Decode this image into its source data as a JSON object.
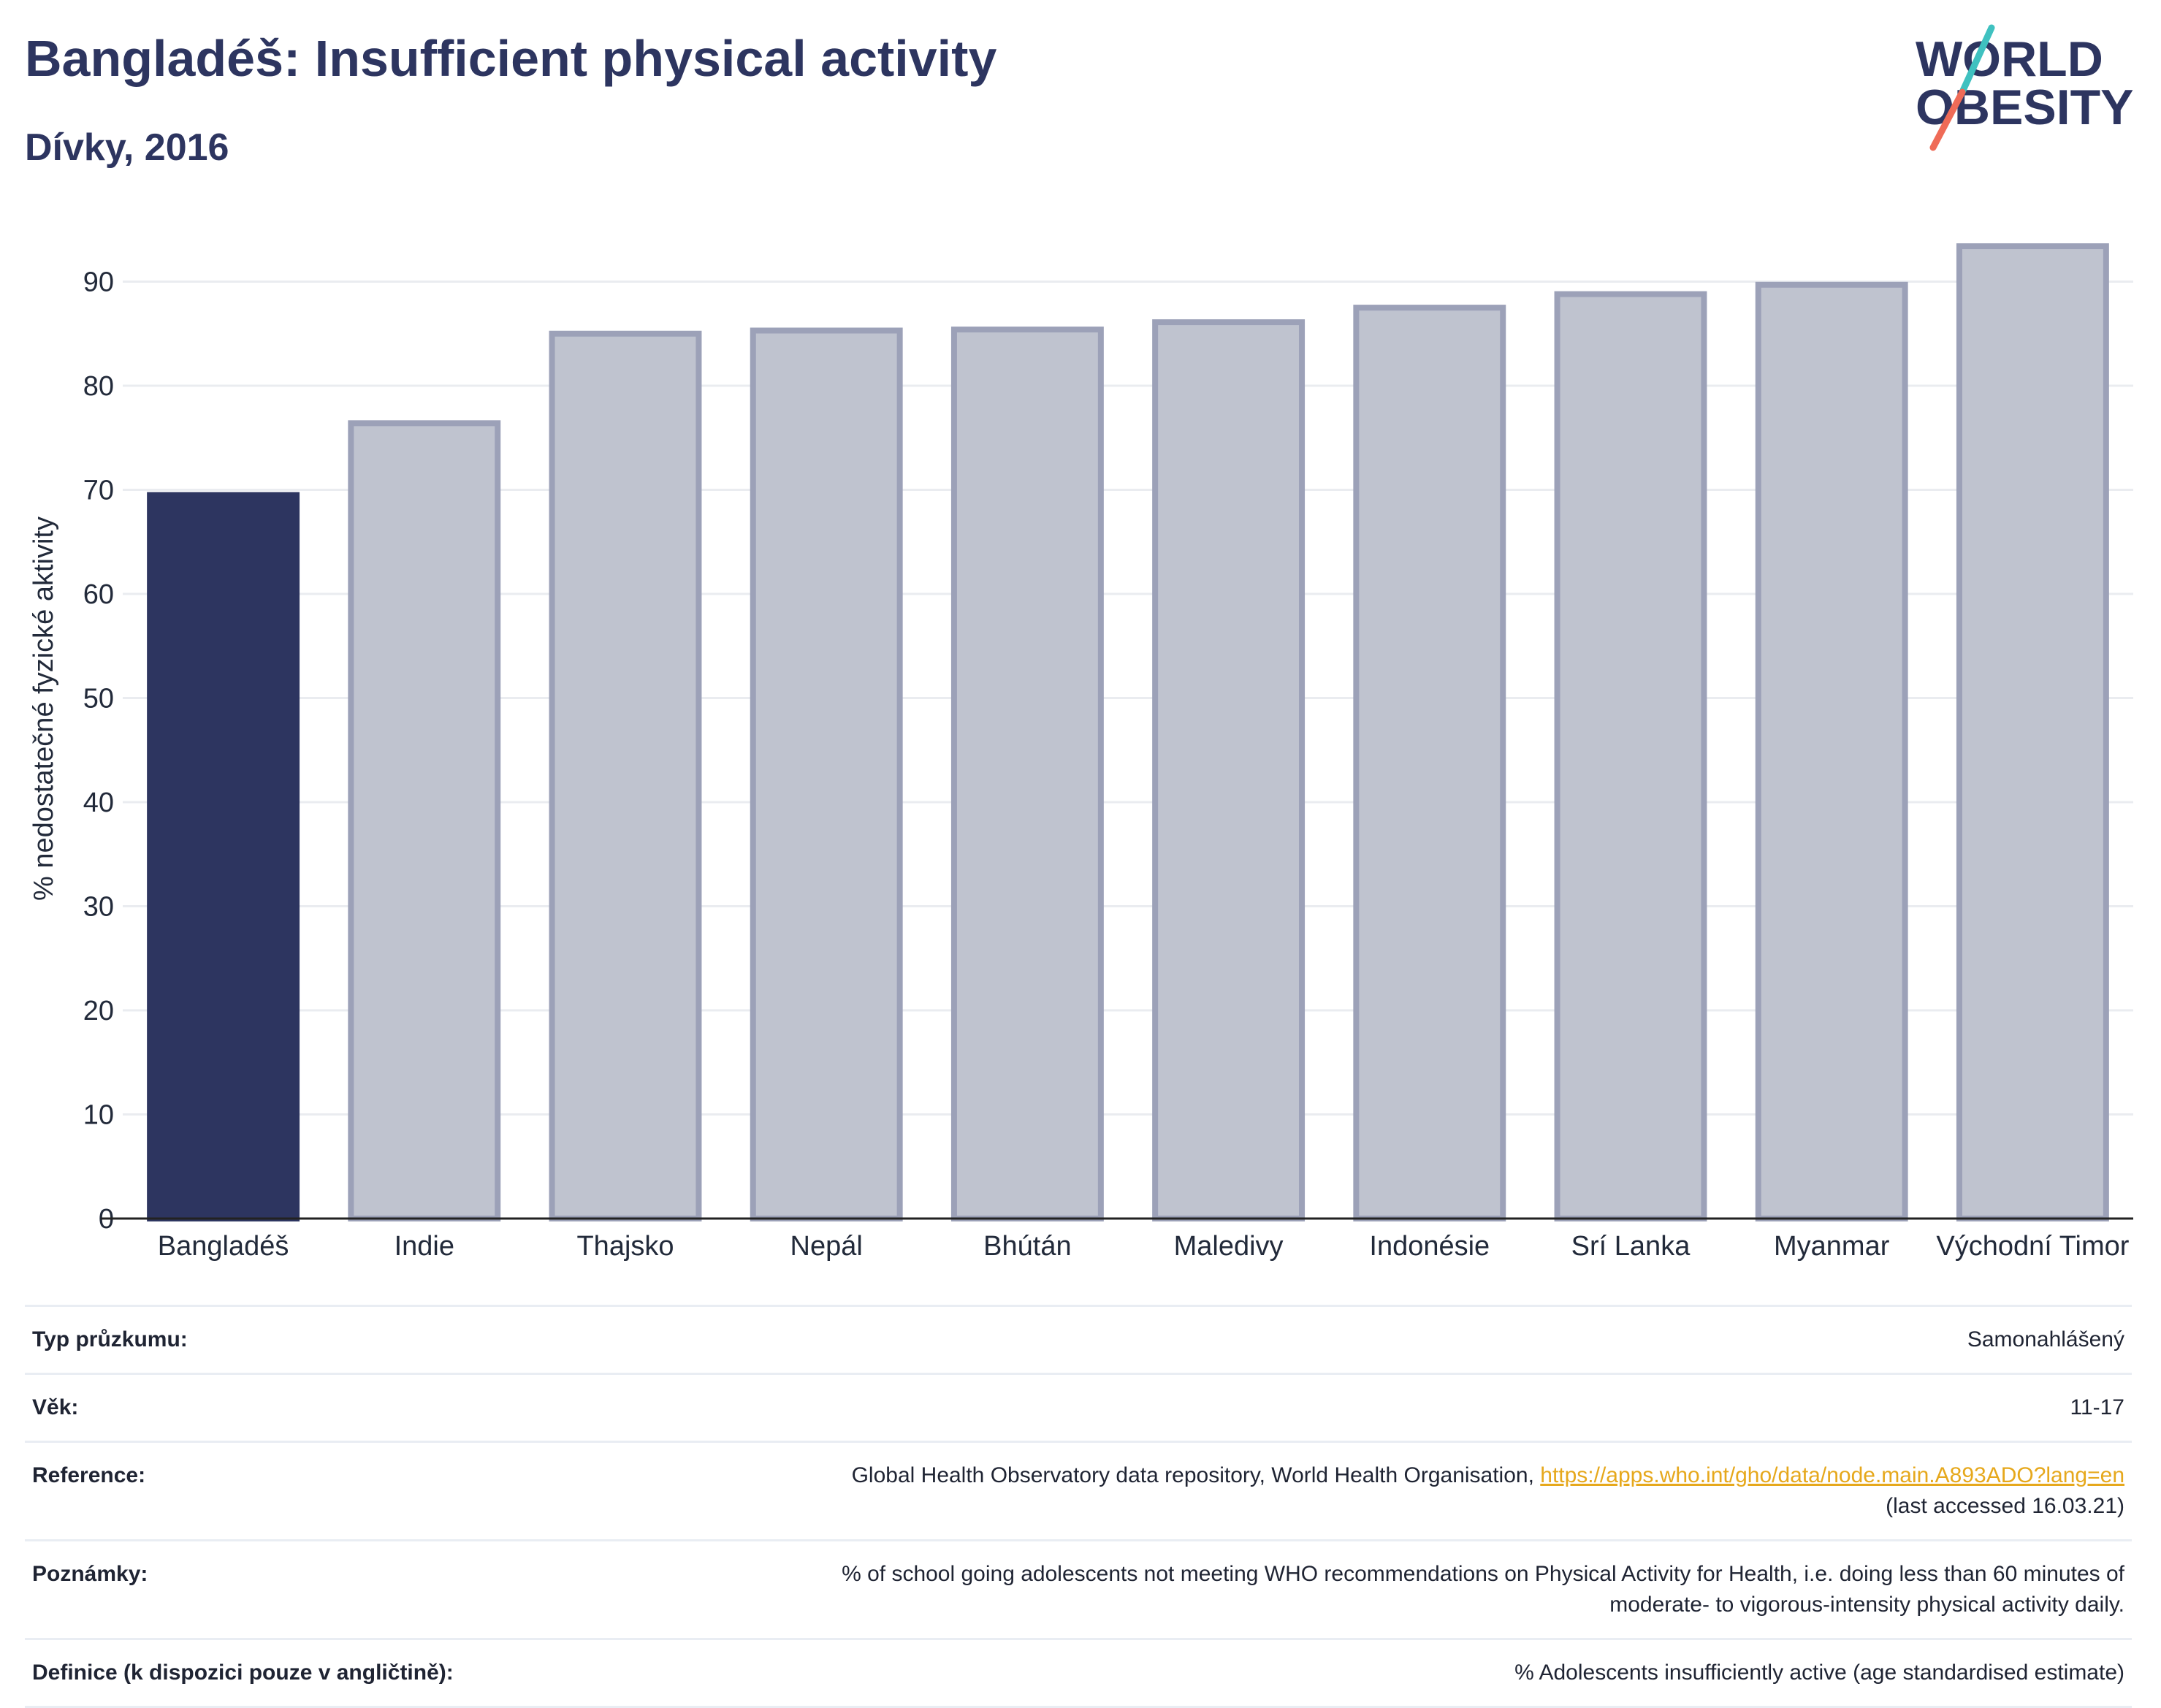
{
  "header": {
    "title": "Bangladéš: Insufficient physical activity",
    "subtitle": "Dívky, 2016"
  },
  "logo": {
    "line1": "WORLD",
    "line2": "OBESITY",
    "colors": {
      "text": "#2d3560",
      "slash_top": "#3fc1c0",
      "slash_bottom": "#ef6b57"
    }
  },
  "colors": {
    "highlight_bar": "#2d3560",
    "other_bar_fill": "#bfc3cf",
    "other_bar_stroke": "#9ca1b8",
    "grid": "#eaecf0",
    "axis": "#222222"
  },
  "chart_data": {
    "type": "bar",
    "title": "Bangladéš: Insufficient physical activity",
    "subtitle": "Dívky, 2016",
    "xlabel": "",
    "ylabel": "% nedostatečné fyzické aktivity",
    "categories": [
      "Bangladéš",
      "Indie",
      "Thajsko",
      "Nepál",
      "Bhútán",
      "Maledivy",
      "Indonésie",
      "Srí Lanka",
      "Myanmar",
      "Východní Timor"
    ],
    "values": [
      69.5,
      76.4,
      85.0,
      85.3,
      85.4,
      86.1,
      87.5,
      88.8,
      89.7,
      93.4
    ],
    "highlight": "Bangladéš",
    "ylim": [
      0,
      96
    ],
    "yticks": [
      0,
      10,
      20,
      30,
      40,
      50,
      60,
      70,
      80,
      90
    ],
    "grid": true,
    "legend": "none"
  },
  "info": {
    "survey_type": {
      "label": "Typ průzkumu:",
      "value": "Samonahlášený"
    },
    "age": {
      "label": "Věk:",
      "value": "11-17"
    },
    "reference": {
      "label": "Reference:",
      "text": "Global Health Observatory data repository, World Health Organisation, ",
      "link": "https://apps.who.int/gho/data/node.main.A893ADO?lang=en",
      "accessed": "(last accessed 16.03.21)"
    },
    "notes": {
      "label": "Poznámky:",
      "line1": "% of school going adolescents not meeting WHO recommendations on Physical Activity for Health, i.e. doing less than 60 minutes of",
      "line2": "moderate- to vigorous-intensity physical activity daily."
    },
    "definition": {
      "label": "Definice (k dispozici pouze v angličtině):",
      "value": "% Adolescents insufficiently active (age standardised estimate)"
    }
  }
}
